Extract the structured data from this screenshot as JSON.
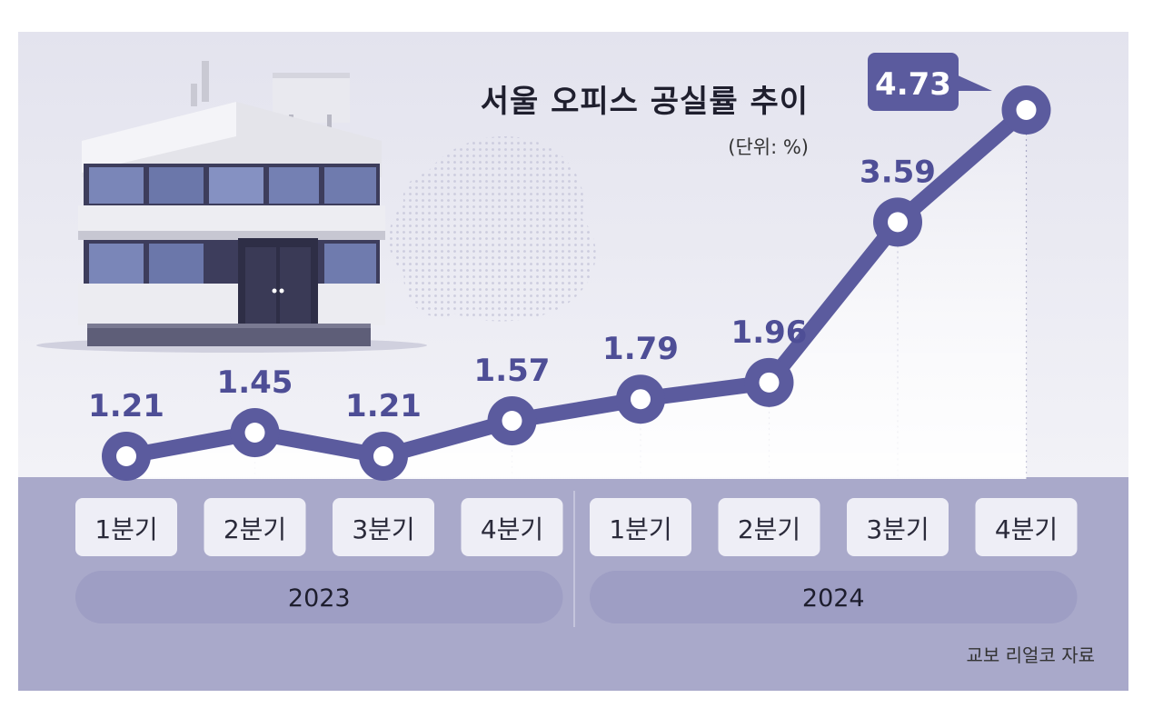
{
  "chart_data": {
    "type": "line",
    "title": "서울 오피스 공실률 추이",
    "unit": "(단위: %)",
    "source": "교보 리얼코 자료",
    "categories": [
      "1분기",
      "2분기",
      "3분기",
      "4분기",
      "1분기",
      "2분기",
      "3분기",
      "4분기"
    ],
    "years": [
      {
        "label": "2023",
        "quarters": 4
      },
      {
        "label": "2024",
        "quarters": 4
      }
    ],
    "values": [
      1.21,
      1.45,
      1.21,
      1.57,
      1.79,
      1.96,
      3.59,
      4.73
    ],
    "value_labels": [
      "1.21",
      "1.45",
      "1.21",
      "1.57",
      "1.79",
      "1.96",
      "3.59",
      "4.73"
    ],
    "highlight_index": 7,
    "grid": false,
    "colors": {
      "line": "#5b5b9e",
      "label": "#4e4e96",
      "callout_bg": "#5b5b9e",
      "callout_text": "#ffffff",
      "panel_top": "#e6e6f0",
      "base": "#a7a7c9",
      "quarter_box": "#eeeef6",
      "year_pill": "#9e9ec4"
    }
  }
}
